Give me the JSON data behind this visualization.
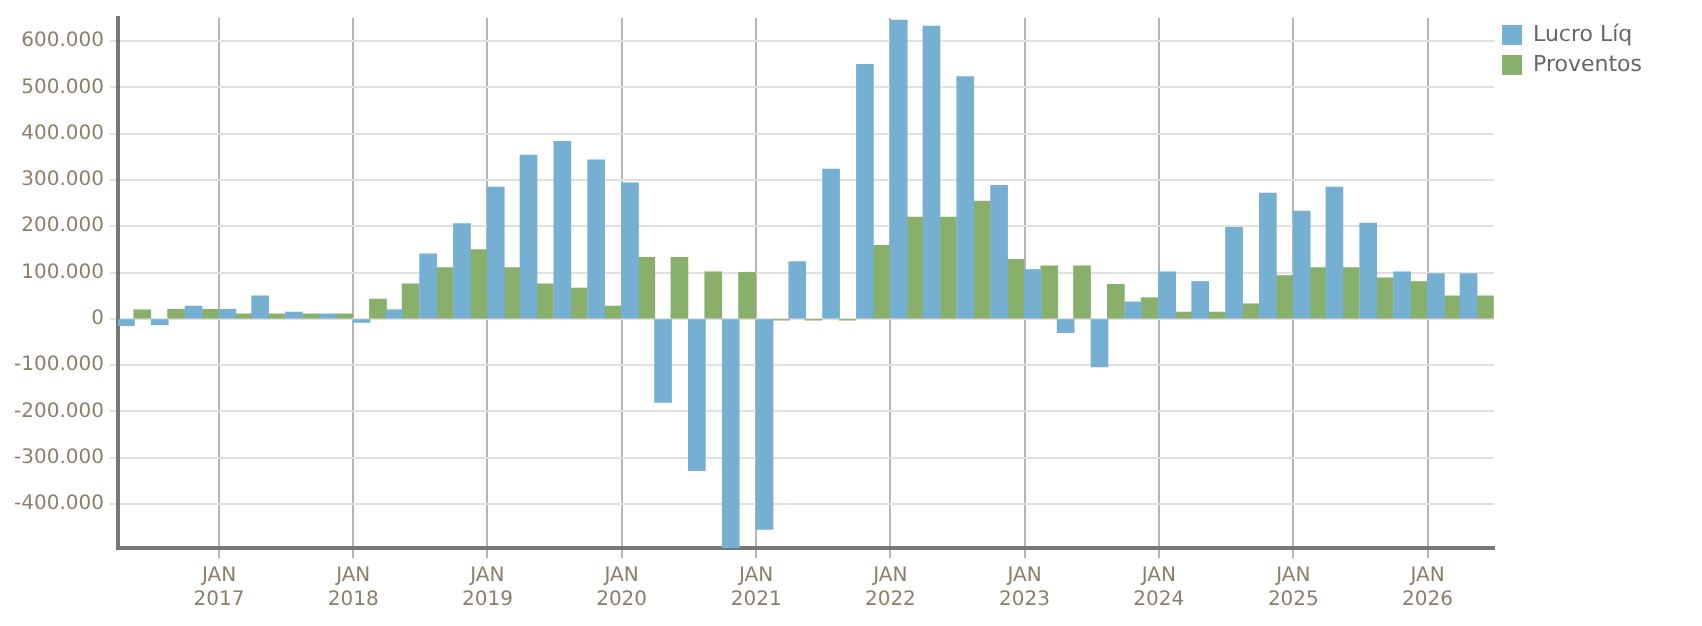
{
  "chart_data": {
    "type": "bar",
    "x": [
      "2016-05-15",
      "2016-08-15",
      "2016-11-15",
      "2017-02-15",
      "2017-05-15",
      "2017-08-15",
      "2017-11-15",
      "2018-02-15",
      "2018-05-15",
      "2018-08-15",
      "2018-11-15",
      "2019-02-15",
      "2019-05-15",
      "2019-08-15",
      "2019-11-15",
      "2020-02-15",
      "2020-05-15",
      "2020-08-15",
      "2020-11-15",
      "2021-02-15",
      "2021-05-15",
      "2021-08-15",
      "2021-11-15",
      "2022-02-15",
      "2022-05-15",
      "2022-08-15",
      "2022-11-15",
      "2023-02-15",
      "2023-05-15",
      "2023-08-15",
      "2023-11-15",
      "2024-02-15",
      "2024-05-15",
      "2024-08-15",
      "2024-11-15",
      "2025-02-15",
      "2025-05-15",
      "2025-08-15",
      "2025-11-15",
      "2026-02-15",
      "2026-05-15"
    ],
    "series": [
      {
        "name": "Lucro Líq",
        "color": "#75b0d3",
        "values": [
          -14000,
          -12000,
          27000,
          20000,
          49000,
          14000,
          10000,
          -7000,
          19000,
          140000,
          205000,
          284000,
          353000,
          383000,
          343000,
          293000,
          -180000,
          -327000,
          -495000,
          -454000,
          123000,
          323000,
          549000,
          645000,
          632000,
          523000,
          288000,
          106000,
          -29000,
          -103000,
          36000,
          101000,
          80000,
          197000,
          271000,
          232000,
          284000,
          206000,
          101000,
          97000,
          97000
        ]
      },
      {
        "name": "Proventos",
        "color": "#88b06a",
        "values": [
          19000,
          20000,
          20000,
          10000,
          10000,
          10000,
          10000,
          42000,
          75000,
          110000,
          149000,
          110000,
          75000,
          66000,
          27000,
          132000,
          132000,
          101000,
          100000,
          -2000,
          -2000,
          -2000,
          158000,
          219000,
          219000,
          254000,
          128000,
          114000,
          114000,
          74000,
          45000,
          14000,
          14000,
          32000,
          93000,
          110000,
          110000,
          88000,
          80000,
          49000,
          49000
        ]
      }
    ],
    "xlim": [
      "2016-04-01",
      "2026-07-01"
    ],
    "xticks": [
      {
        "value": "2017-01-01",
        "label": "JAN 2017"
      },
      {
        "value": "2018-01-01",
        "label": "JAN 2018"
      },
      {
        "value": "2019-01-01",
        "label": "JAN 2019"
      },
      {
        "value": "2020-01-01",
        "label": "JAN 2020"
      },
      {
        "value": "2021-01-01",
        "label": "JAN 2021"
      },
      {
        "value": "2022-01-01",
        "label": "JAN 2022"
      },
      {
        "value": "2023-01-01",
        "label": "JAN 2023"
      },
      {
        "value": "2024-01-01",
        "label": "JAN 2024"
      },
      {
        "value": "2025-01-01",
        "label": "JAN 2025"
      },
      {
        "value": "2026-01-01",
        "label": "JAN 2026"
      }
    ],
    "ylim": [
      -495000,
      650000
    ],
    "yticks": [
      {
        "value": -400000,
        "label": "-400.000"
      },
      {
        "value": -300000,
        "label": "-300.000"
      },
      {
        "value": -200000,
        "label": "-200.000"
      },
      {
        "value": -100000,
        "label": "-100.000"
      },
      0,
      {
        "value": 100000,
        "label": "100.000"
      },
      {
        "value": 200000,
        "label": "200.000"
      },
      {
        "value": 300000,
        "label": "300.000"
      },
      {
        "value": 400000,
        "label": "400.000"
      },
      {
        "value": 500000,
        "label": "500.000"
      },
      {
        "value": 600000,
        "label": "600.000"
      }
    ],
    "grid": true,
    "legend": "top right"
  }
}
